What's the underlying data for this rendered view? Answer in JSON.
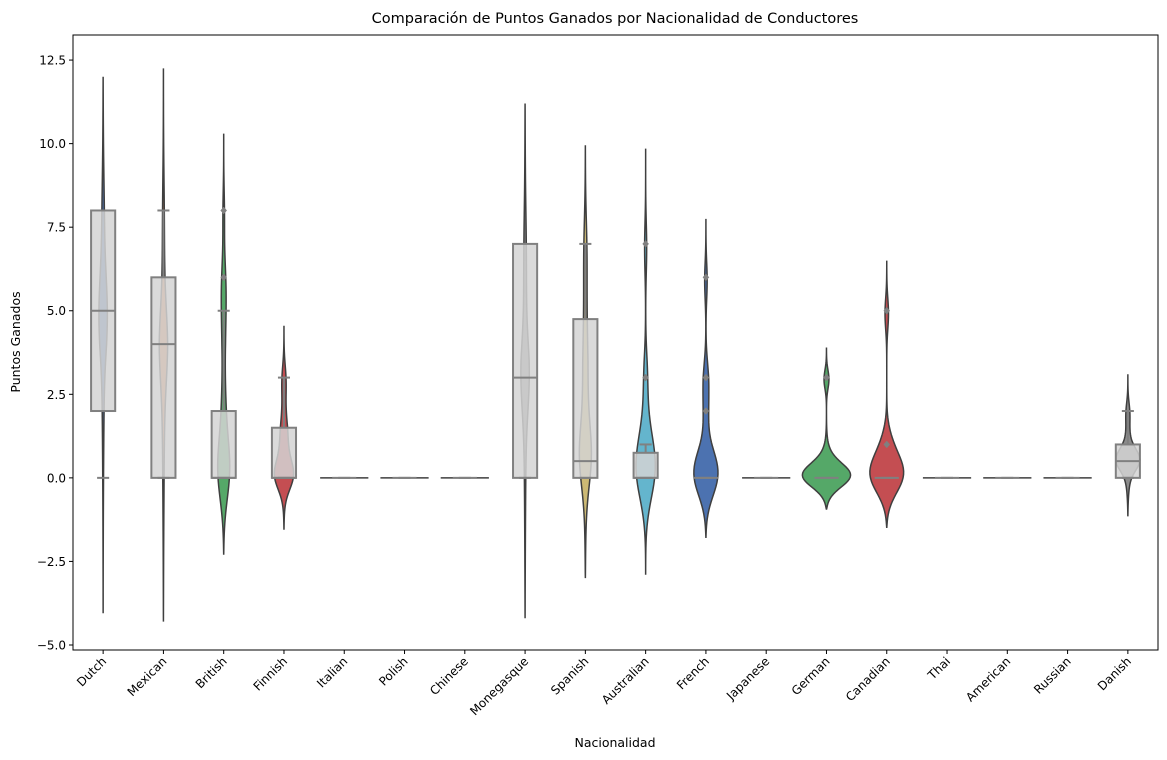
{
  "chart_data": {
    "type": "violin",
    "title": "Comparación de Puntos Ganados por Nacionalidad de Conductores",
    "xlabel": "Nacionalidad",
    "ylabel": "Puntos Ganados",
    "ylim": [
      -5.15,
      13.25
    ],
    "yticks": [
      -5.0,
      -2.5,
      0.0,
      2.5,
      5.0,
      7.5,
      10.0,
      12.5
    ],
    "ytick_labels": [
      "−5.0",
      "−2.5",
      "0.0",
      "2.5",
      "5.0",
      "7.5",
      "10.0",
      "12.5"
    ],
    "grid": false,
    "legend": false,
    "box_color": "#d3d3d3",
    "box_edge_color": "#808080",
    "violin_edge_color": "#3f3f3f",
    "categories": [
      "Dutch",
      "Mexican",
      "British",
      "Finnish",
      "Italian",
      "Polish",
      "Chinese",
      "Monegasque",
      "Spanish",
      "Australian",
      "French",
      "Japanese",
      "German",
      "Canadian",
      "Thai",
      "American",
      "Russian",
      "Danish"
    ],
    "series": [
      {
        "category": "Dutch",
        "color": "#4c72b0",
        "violin_range": [
          -4.05,
          12.0
        ],
        "max_half_width": 0.07,
        "box": {
          "q1": 2.0,
          "median": 5.0,
          "q3": 8.0,
          "whisker_low": 0.0,
          "whisker_high": 8.0
        },
        "outliers": []
      },
      {
        "category": "Mexican",
        "color": "#dd8452",
        "violin_range": [
          -4.3,
          12.25
        ],
        "max_half_width": 0.07,
        "box": {
          "q1": 0.0,
          "median": 4.0,
          "q3": 6.0,
          "whisker_low": 0.0,
          "whisker_high": 8.0
        },
        "outliers": []
      },
      {
        "category": "British",
        "color": "#55a868",
        "violin_range": [
          -2.3,
          10.3
        ],
        "max_half_width": 0.1,
        "box": {
          "q1": 0.0,
          "median": 0.0,
          "q3": 2.0,
          "whisker_low": 0.0,
          "whisker_high": 5.0
        },
        "outliers": [
          6.0,
          8.0
        ]
      },
      {
        "category": "Finnish",
        "color": "#c44e52",
        "violin_range": [
          -1.55,
          4.55
        ],
        "max_half_width": 0.16,
        "box": {
          "q1": 0.0,
          "median": 0.0,
          "q3": 1.5,
          "whisker_low": 0.0,
          "whisker_high": 3.0
        },
        "outliers": []
      },
      {
        "category": "Italian",
        "color": "#8172b3",
        "violin_range": [
          0.0,
          0.0
        ],
        "max_half_width": 0.4,
        "box": {
          "q1": 0.0,
          "median": 0.0,
          "q3": 0.0,
          "whisker_low": 0.0,
          "whisker_high": 0.0
        },
        "outliers": []
      },
      {
        "category": "Polish",
        "color": "#937860",
        "violin_range": [
          0.0,
          0.0
        ],
        "max_half_width": 0.4,
        "box": {
          "q1": 0.0,
          "median": 0.0,
          "q3": 0.0,
          "whisker_low": 0.0,
          "whisker_high": 0.0
        },
        "outliers": []
      },
      {
        "category": "Chinese",
        "color": "#da8bc3",
        "violin_range": [
          0.0,
          0.0
        ],
        "max_half_width": 0.4,
        "box": {
          "q1": 0.0,
          "median": 0.0,
          "q3": 0.0,
          "whisker_low": 0.0,
          "whisker_high": 0.0
        },
        "outliers": []
      },
      {
        "category": "Monegasque",
        "color": "#8c8c8c",
        "violin_range": [
          -4.2,
          11.2
        ],
        "max_half_width": 0.07,
        "box": {
          "q1": 0.0,
          "median": 3.0,
          "q3": 7.0,
          "whisker_low": 0.0,
          "whisker_high": 7.0
        },
        "outliers": []
      },
      {
        "category": "Spanish",
        "color": "#ccb974",
        "violin_range": [
          -3.0,
          9.95
        ],
        "max_half_width": 0.1,
        "box": {
          "q1": 0.0,
          "median": 0.5,
          "q3": 4.75,
          "whisker_low": 0.0,
          "whisker_high": 7.0
        },
        "outliers": []
      },
      {
        "category": "Australian",
        "color": "#64b5cd",
        "violin_range": [
          -2.9,
          9.85
        ],
        "max_half_width": 0.16,
        "box": {
          "q1": 0.0,
          "median": 0.0,
          "q3": 0.75,
          "whisker_low": 0.0,
          "whisker_high": 1.0
        },
        "outliers": [
          3.0,
          7.0
        ]
      },
      {
        "category": "French",
        "color": "#4c72b0",
        "violin_range": [
          -1.8,
          7.75
        ],
        "max_half_width": 0.2,
        "box": {
          "q1": 0.0,
          "median": 0.0,
          "q3": 0.0,
          "whisker_low": 0.0,
          "whisker_high": 0.0
        },
        "outliers": [
          2.0,
          3.0,
          6.0
        ]
      },
      {
        "category": "Japanese",
        "color": "#dd8452",
        "violin_range": [
          0.0,
          0.0
        ],
        "max_half_width": 0.4,
        "box": {
          "q1": 0.0,
          "median": 0.0,
          "q3": 0.0,
          "whisker_low": 0.0,
          "whisker_high": 0.0
        },
        "outliers": []
      },
      {
        "category": "German",
        "color": "#55a868",
        "violin_range": [
          -0.95,
          3.9
        ],
        "max_half_width": 0.4,
        "box": {
          "q1": 0.0,
          "median": 0.0,
          "q3": 0.0,
          "whisker_low": 0.0,
          "whisker_high": 0.0
        },
        "outliers": [
          3.0
        ]
      },
      {
        "category": "Canadian",
        "color": "#c44e52",
        "violin_range": [
          -1.5,
          6.5
        ],
        "max_half_width": 0.28,
        "box": {
          "q1": 0.0,
          "median": 0.0,
          "q3": 0.0,
          "whisker_low": 0.0,
          "whisker_high": 0.0
        },
        "outliers": [
          1.0,
          5.0
        ]
      },
      {
        "category": "Thai",
        "color": "#8172b3",
        "violin_range": [
          0.0,
          0.0
        ],
        "max_half_width": 0.4,
        "box": {
          "q1": 0.0,
          "median": 0.0,
          "q3": 0.0,
          "whisker_low": 0.0,
          "whisker_high": 0.0
        },
        "outliers": []
      },
      {
        "category": "American",
        "color": "#937860",
        "violin_range": [
          0.0,
          0.0
        ],
        "max_half_width": 0.4,
        "box": {
          "q1": 0.0,
          "median": 0.0,
          "q3": 0.0,
          "whisker_low": 0.0,
          "whisker_high": 0.0
        },
        "outliers": []
      },
      {
        "category": "Russian",
        "color": "#da8bc3",
        "violin_range": [
          0.0,
          0.0
        ],
        "max_half_width": 0.4,
        "box": {
          "q1": 0.0,
          "median": 0.0,
          "q3": 0.0,
          "whisker_low": 0.0,
          "whisker_high": 0.0
        },
        "outliers": []
      },
      {
        "category": "Danish",
        "color": "#8c8c8c",
        "violin_range": [
          -1.15,
          3.1
        ],
        "max_half_width": 0.2,
        "box": {
          "q1": 0.0,
          "median": 0.5,
          "q3": 1.0,
          "whisker_low": 0.0,
          "whisker_high": 2.0
        },
        "outliers": []
      }
    ]
  }
}
